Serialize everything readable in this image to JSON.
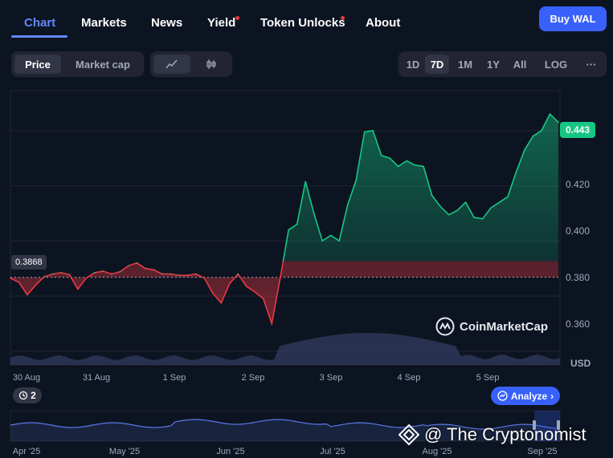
{
  "nav": {
    "tabs": [
      {
        "label": "Chart",
        "active": true,
        "dot": false
      },
      {
        "label": "Markets",
        "active": false,
        "dot": false
      },
      {
        "label": "News",
        "active": false,
        "dot": false
      },
      {
        "label": "Yield",
        "active": false,
        "dot": true
      },
      {
        "label": "Token Unlocks",
        "active": false,
        "dot": true
      },
      {
        "label": "About",
        "active": false,
        "dot": false
      }
    ],
    "buy_label": "Buy WAL"
  },
  "toolbar": {
    "metric_tabs": [
      "Price",
      "Market cap"
    ],
    "metric_selected": "Price",
    "chart_style_icons": [
      "line-chart-icon",
      "candlestick-icon"
    ],
    "chart_style_selected": "line-chart-icon",
    "ranges": [
      "1D",
      "7D",
      "1M",
      "1Y",
      "All",
      "LOG"
    ],
    "range_selected": "7D",
    "more_label": "···"
  },
  "chart_data": {
    "type": "line",
    "series": [
      {
        "x": [
          "2025-08-30 00:00",
          "2025-08-30 03:00",
          "2025-08-30 06:00",
          "2025-08-30 09:00",
          "2025-08-30 12:00",
          "2025-08-30 15:00",
          "2025-08-30 18:00",
          "2025-08-30 21:00",
          "2025-08-31 00:00",
          "2025-08-31 03:00",
          "2025-08-31 06:00",
          "2025-08-31 09:00",
          "2025-08-31 12:00",
          "2025-08-31 15:00",
          "2025-08-31 18:00",
          "2025-08-31 21:00",
          "2025-09-01 00:00",
          "2025-09-01 03:00",
          "2025-09-01 06:00",
          "2025-09-01 09:00",
          "2025-09-01 12:00",
          "2025-09-01 15:00",
          "2025-09-01 18:00",
          "2025-09-01 21:00",
          "2025-09-02 00:00",
          "2025-09-02 03:00",
          "2025-09-02 06:00",
          "2025-09-02 09:00",
          "2025-09-02 12:00",
          "2025-09-02 15:00",
          "2025-09-02 18:00",
          "2025-09-02 21:00",
          "2025-09-03 00:00",
          "2025-09-03 03:00",
          "2025-09-03 06:00",
          "2025-09-03 09:00",
          "2025-09-03 12:00",
          "2025-09-03 15:00",
          "2025-09-03 18:00",
          "2025-09-03 21:00",
          "2025-09-04 00:00",
          "2025-09-04 03:00",
          "2025-09-04 06:00",
          "2025-09-04 09:00",
          "2025-09-04 12:00",
          "2025-09-04 15:00",
          "2025-09-04 18:00",
          "2025-09-04 21:00",
          "2025-09-05 00:00",
          "2025-09-05 03:00",
          "2025-09-05 06:00",
          "2025-09-05 09:00",
          "2025-09-05 12:00",
          "2025-09-05 15:00",
          "2025-09-05 18:00",
          "2025-09-05 21:00",
          "2025-09-06 00:00",
          "2025-09-06 03:00",
          "2025-09-06 06:00"
        ],
        "values": [
          0.3865,
          0.385,
          0.3805,
          0.384,
          0.387,
          0.388,
          0.3885,
          0.3878,
          0.3825,
          0.3865,
          0.3885,
          0.389,
          0.388,
          0.3888,
          0.391,
          0.392,
          0.39,
          0.3895,
          0.388,
          0.388,
          0.3875,
          0.3875,
          0.388,
          0.3865,
          0.381,
          0.3775,
          0.3845,
          0.388,
          0.3835,
          0.3815,
          0.379,
          0.37,
          0.3865,
          0.404,
          0.406,
          0.4215,
          0.41,
          0.4,
          0.402,
          0.4,
          0.413,
          0.422,
          0.4395,
          0.44,
          0.431,
          0.43,
          0.427,
          0.429,
          0.4275,
          0.427,
          0.4165,
          0.4125,
          0.4095,
          0.411,
          0.414,
          0.4085,
          0.408,
          0.412,
          0.414
        ]
      }
    ],
    "series_tail": {
      "values": [
        0.416,
        0.425,
        0.433,
        0.438,
        0.44,
        0.446,
        0.443
      ]
    },
    "baseline": 0.3868,
    "current_price": 0.443,
    "yticks": [
      "0.360",
      "0.380",
      "0.400",
      "0.420"
    ],
    "ytick_values": [
      0.36,
      0.38,
      0.4,
      0.42
    ],
    "ylim": [
      0.355,
      0.4545
    ],
    "xticks": [
      "30 Aug",
      "31 Aug",
      "1 Sep",
      "2 Sep",
      "3 Sep",
      "4 Sep",
      "5 Sep"
    ],
    "y_unit": "USD",
    "colors": {
      "up": "#16c784",
      "down": "#ea3943",
      "volume": "#2f3a5c",
      "navigator": "#5a78e6"
    },
    "navigator_xticks": [
      "Apr '25",
      "May '25",
      "Jun '25",
      "Jul '25",
      "Aug '25",
      "Sep '25"
    ]
  },
  "chart_labels": {
    "baseline_label": "0.3868",
    "current_price_label": "0.443",
    "unit_label": "USD",
    "watermark": "CoinMarketCap",
    "history_count": "2",
    "analyze_label": "Analyze",
    "overlay_text": "@ The Cryptonomist"
  }
}
